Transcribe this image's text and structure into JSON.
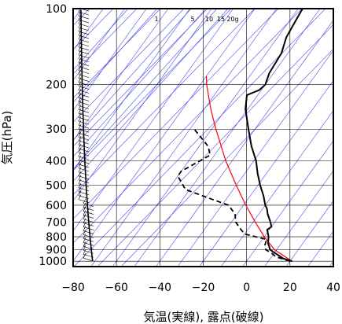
{
  "chart_data": {
    "type": "line",
    "xlabel": "気温(実線), 露点(破線)",
    "ylabel": "気圧(hPa)",
    "xlim": [
      -80,
      40
    ],
    "ylim_hPa": [
      1050,
      100
    ],
    "y_scale": "log",
    "x_ticks": [
      "−80",
      "−60",
      "−40",
      "−20",
      "0",
      "20",
      "40"
    ],
    "y_ticks": [
      "100",
      "200",
      "300",
      "400",
      "500",
      "600",
      "700",
      "800",
      "900",
      "1000"
    ],
    "mixing_ratio_labels": [
      "1",
      "5",
      "10",
      "15",
      "20g"
    ],
    "grid": true,
    "colors": {
      "temperature": "#000000",
      "dewpoint": "#000000",
      "parcel": "#ff0000",
      "guide_lines": "#4a4ae8",
      "grid": "#000000"
    },
    "temperature": [
      {
        "p": 1000,
        "t": 21
      },
      {
        "p": 975,
        "t": 16
      },
      {
        "p": 950,
        "t": 13
      },
      {
        "p": 925,
        "t": 10
      },
      {
        "p": 900,
        "t": 7
      },
      {
        "p": 850,
        "t": 4
      },
      {
        "p": 800,
        "t": 2
      },
      {
        "p": 750,
        "t": -1
      },
      {
        "p": 730,
        "t": 0
      },
      {
        "p": 700,
        "t": -2
      },
      {
        "p": 650,
        "t": -6
      },
      {
        "p": 620,
        "t": -8
      },
      {
        "p": 600,
        "t": -10
      },
      {
        "p": 550,
        "t": -14
      },
      {
        "p": 500,
        "t": -19
      },
      {
        "p": 450,
        "t": -24
      },
      {
        "p": 400,
        "t": -29
      },
      {
        "p": 350,
        "t": -36
      },
      {
        "p": 300,
        "t": -43
      },
      {
        "p": 250,
        "t": -51
      },
      {
        "p": 220,
        "t": -55
      },
      {
        "p": 210,
        "t": -51
      },
      {
        "p": 200,
        "t": -50
      },
      {
        "p": 180,
        "t": -52
      },
      {
        "p": 150,
        "t": -53
      },
      {
        "p": 130,
        "t": -56
      },
      {
        "p": 115,
        "t": -57
      },
      {
        "p": 100,
        "t": -58
      }
    ],
    "dewpoint": [
      {
        "p": 1000,
        "t": 20
      },
      {
        "p": 960,
        "t": 12
      },
      {
        "p": 930,
        "t": 9
      },
      {
        "p": 900,
        "t": 5
      },
      {
        "p": 860,
        "t": 3
      },
      {
        "p": 820,
        "t": 2
      },
      {
        "p": 780,
        "t": -10
      },
      {
        "p": 750,
        "t": -13
      },
      {
        "p": 700,
        "t": -18
      },
      {
        "p": 650,
        "t": -21
      },
      {
        "p": 600,
        "t": -27
      },
      {
        "p": 570,
        "t": -36
      },
      {
        "p": 520,
        "t": -52
      },
      {
        "p": 460,
        "t": -60
      },
      {
        "p": 440,
        "t": -60
      },
      {
        "p": 380,
        "t": -52
      },
      {
        "p": 350,
        "t": -56
      },
      {
        "p": 300,
        "t": -68
      }
    ],
    "parcel": [
      {
        "p": 1000,
        "t": 21
      },
      {
        "p": 900,
        "t": 9
      },
      {
        "p": 800,
        "t": 0
      },
      {
        "p": 700,
        "t": -9
      },
      {
        "p": 600,
        "t": -19
      },
      {
        "p": 500,
        "t": -30
      },
      {
        "p": 400,
        "t": -43
      },
      {
        "p": 300,
        "t": -58
      },
      {
        "p": 250,
        "t": -67
      },
      {
        "p": 200,
        "t": -77
      },
      {
        "p": 185,
        "t": -80
      }
    ]
  }
}
